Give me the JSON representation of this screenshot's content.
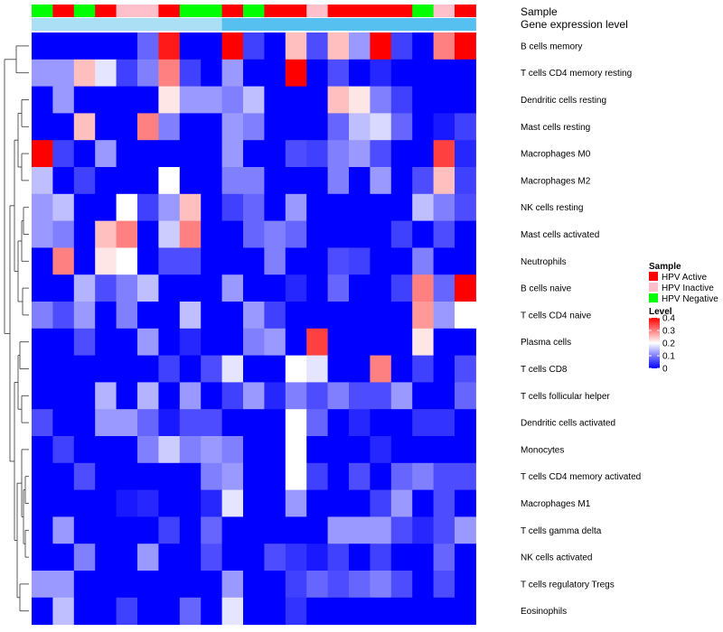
{
  "chart_data": {
    "type": "heatmap",
    "annotation_labels": {
      "sample": "Sample",
      "level": "Gene expression level"
    },
    "sample_groups": [
      "Negative",
      "Active",
      "Negative",
      "Active",
      "Inactive",
      "Inactive",
      "Active",
      "Negative",
      "Negative",
      "Active",
      "Negative",
      "Active",
      "Active",
      "Inactive",
      "Active",
      "Active",
      "Active",
      "Active",
      "Negative",
      "Inactive",
      "Active"
    ],
    "column_levels": [
      0.05,
      0.05,
      0.05,
      0.05,
      0.05,
      0.05,
      0.05,
      0.05,
      0.05,
      0.12,
      0.12,
      0.12,
      0.12,
      0.12,
      0.12,
      0.12,
      0.12,
      0.12,
      0.12,
      0.12,
      0.12
    ],
    "rows": [
      "B cells memory",
      "T cells CD4 memory resting",
      "Dendritic cells resting",
      "Mast cells resting",
      "Macrophages M0",
      "Macrophages M2",
      "NK cells resting",
      "Mast cells activated",
      "Neutrophils",
      "B cells naive",
      "T cells CD4 naive",
      "Plasma cells",
      "T cells CD8",
      "T cells follicular helper",
      "Dendritic cells activated",
      "Monocytes",
      "T cells CD4 memory activated",
      "Macrophages M1",
      "T cells gamma delta",
      "NK cells activated",
      "T cells regulatory  Tregs",
      "Eosinophils"
    ],
    "values": [
      [
        0.0,
        0.0,
        0.0,
        0.0,
        0.0,
        0.08,
        0.38,
        0.0,
        0.0,
        0.4,
        0.05,
        0.0,
        0.25,
        0.06,
        0.25,
        0.12,
        0.4,
        0.05,
        0.0,
        0.3,
        0.4
      ],
      [
        0.12,
        0.12,
        0.25,
        0.18,
        0.05,
        0.1,
        0.3,
        0.05,
        0.0,
        0.12,
        0.0,
        0.0,
        0.4,
        0.0,
        0.06,
        0.0,
        0.03,
        0.0,
        0.0,
        0.0,
        0.0
      ],
      [
        0.0,
        0.12,
        0.0,
        0.0,
        0.0,
        0.0,
        0.22,
        0.12,
        0.12,
        0.1,
        0.15,
        0.0,
        0.0,
        0.0,
        0.25,
        0.22,
        0.1,
        0.05,
        0.0,
        0.0,
        0.0
      ],
      [
        0.0,
        0.0,
        0.25,
        0.0,
        0.0,
        0.3,
        0.1,
        0.0,
        0.0,
        0.12,
        0.1,
        0.0,
        0.0,
        0.0,
        0.08,
        0.15,
        0.17,
        0.08,
        0.0,
        0.02,
        0.05
      ],
      [
        0.4,
        0.05,
        0.0,
        0.12,
        0.0,
        0.0,
        0.0,
        0.0,
        0.0,
        0.12,
        0.0,
        0.0,
        0.06,
        0.05,
        0.1,
        0.12,
        0.06,
        0.0,
        0.0,
        0.35,
        0.03
      ],
      [
        0.15,
        0.0,
        0.05,
        0.0,
        0.0,
        0.0,
        0.2,
        0.0,
        0.0,
        0.1,
        0.1,
        0.0,
        0.0,
        0.0,
        0.1,
        0.0,
        0.12,
        0.0,
        0.06,
        0.25,
        0.05
      ],
      [
        0.12,
        0.15,
        0.0,
        0.0,
        0.2,
        0.05,
        0.12,
        0.25,
        0.0,
        0.05,
        0.08,
        0.0,
        0.12,
        0.0,
        0.0,
        0.0,
        0.0,
        0.0,
        0.15,
        0.1,
        0.06
      ],
      [
        0.12,
        0.1,
        0.0,
        0.25,
        0.3,
        0.0,
        0.16,
        0.3,
        0.0,
        0.0,
        0.08,
        0.1,
        0.08,
        0.0,
        0.0,
        0.0,
        0.0,
        0.05,
        0.0,
        0.06,
        0.0
      ],
      [
        0.0,
        0.3,
        0.0,
        0.22,
        0.2,
        0.0,
        0.06,
        0.06,
        0.0,
        0.0,
        0.0,
        0.1,
        0.0,
        0.0,
        0.06,
        0.05,
        0.0,
        0.0,
        0.1,
        0.0,
        0.0
      ],
      [
        0.0,
        0.0,
        0.14,
        0.06,
        0.1,
        0.15,
        0.0,
        0.0,
        0.0,
        0.12,
        0.0,
        0.0,
        0.03,
        0.0,
        0.08,
        0.0,
        0.0,
        0.05,
        0.3,
        0.08,
        0.4
      ],
      [
        0.1,
        0.06,
        0.12,
        0.0,
        0.1,
        0.0,
        0.0,
        0.15,
        0.0,
        0.0,
        0.12,
        0.05,
        0.0,
        0.0,
        0.0,
        0.0,
        0.0,
        0.0,
        0.28,
        0.12,
        0.2
      ],
      [
        0.0,
        0.0,
        0.06,
        0.0,
        0.0,
        0.12,
        0.0,
        0.03,
        0.0,
        0.0,
        0.1,
        0.12,
        0.0,
        0.35,
        0.0,
        0.0,
        0.0,
        0.0,
        0.22,
        0.0,
        0.0
      ],
      [
        0.0,
        0.0,
        0.0,
        0.0,
        0.0,
        0.0,
        0.05,
        0.0,
        0.06,
        0.18,
        0.0,
        0.0,
        0.2,
        0.18,
        0.0,
        0.0,
        0.3,
        0.0,
        0.05,
        0.0,
        0.06
      ],
      [
        0.0,
        0.0,
        0.0,
        0.14,
        0.0,
        0.14,
        0.0,
        0.12,
        0.0,
        0.05,
        0.12,
        0.03,
        0.1,
        0.06,
        0.1,
        0.06,
        0.06,
        0.12,
        0.0,
        0.0,
        0.08
      ],
      [
        0.06,
        0.0,
        0.0,
        0.12,
        0.12,
        0.08,
        0.02,
        0.06,
        0.06,
        0.0,
        0.0,
        0.0,
        0.2,
        0.08,
        0.0,
        0.03,
        0.0,
        0.0,
        0.04,
        0.04,
        0.0
      ],
      [
        0.0,
        0.05,
        0.0,
        0.0,
        0.0,
        0.1,
        0.16,
        0.1,
        0.12,
        0.1,
        0.0,
        0.0,
        0.2,
        0.0,
        0.0,
        0.0,
        0.03,
        0.0,
        0.0,
        0.0,
        0.0
      ],
      [
        0.0,
        0.0,
        0.06,
        0.0,
        0.0,
        0.0,
        0.0,
        0.0,
        0.1,
        0.12,
        0.0,
        0.0,
        0.2,
        0.05,
        0.0,
        0.06,
        0.0,
        0.08,
        0.1,
        0.06,
        0.06
      ],
      [
        0.0,
        0.0,
        0.0,
        0.0,
        0.02,
        0.03,
        0.0,
        0.0,
        0.03,
        0.18,
        0.0,
        0.0,
        0.12,
        0.0,
        0.0,
        0.0,
        0.05,
        0.12,
        0.0,
        0.06,
        0.0
      ],
      [
        0.0,
        0.12,
        0.0,
        0.0,
        0.0,
        0.0,
        0.05,
        0.0,
        0.08,
        0.0,
        0.0,
        0.0,
        0.0,
        0.0,
        0.12,
        0.12,
        0.12,
        0.06,
        0.03,
        0.06,
        0.12
      ],
      [
        0.0,
        0.0,
        0.1,
        0.0,
        0.0,
        0.12,
        0.0,
        0.0,
        0.06,
        0.0,
        0.0,
        0.06,
        0.04,
        0.02,
        0.05,
        0.0,
        0.05,
        0.0,
        0.0,
        0.08,
        0.0
      ],
      [
        0.12,
        0.12,
        0.0,
        0.0,
        0.0,
        0.0,
        0.0,
        0.0,
        0.0,
        0.12,
        0.0,
        0.0,
        0.05,
        0.08,
        0.06,
        0.08,
        0.1,
        0.06,
        0.0,
        0.06,
        0.0
      ],
      [
        0.0,
        0.15,
        0.0,
        0.0,
        0.05,
        0.0,
        0.0,
        0.08,
        0.0,
        0.18,
        0.0,
        0.0,
        0.04,
        0.0,
        0.0,
        0.0,
        0.0,
        0.0,
        0.0,
        0.0,
        0.0
      ]
    ],
    "legend_sample": {
      "title": "Sample",
      "items": [
        {
          "key": "Active",
          "label": "HPV Active",
          "color": "#ff0000"
        },
        {
          "key": "Inactive",
          "label": "HPV Inactive",
          "color": "#ffc0cb"
        },
        {
          "key": "Negative",
          "label": "HPV Negative",
          "color": "#00ff00"
        }
      ]
    },
    "legend_level": {
      "title": "Level",
      "ticks": [
        "0.4",
        "0.3",
        "0.2",
        "0.1",
        "0"
      ],
      "tick_values": [
        0.4,
        0.3,
        0.2,
        0.1,
        0.0
      ],
      "range": [
        0,
        0.4
      ]
    },
    "colors": {
      "low": "#0000ff",
      "mid": "#ffffff",
      "high": "#ff0000",
      "level_low": "#e8f4fb",
      "level_high": "#56c1f0"
    }
  }
}
